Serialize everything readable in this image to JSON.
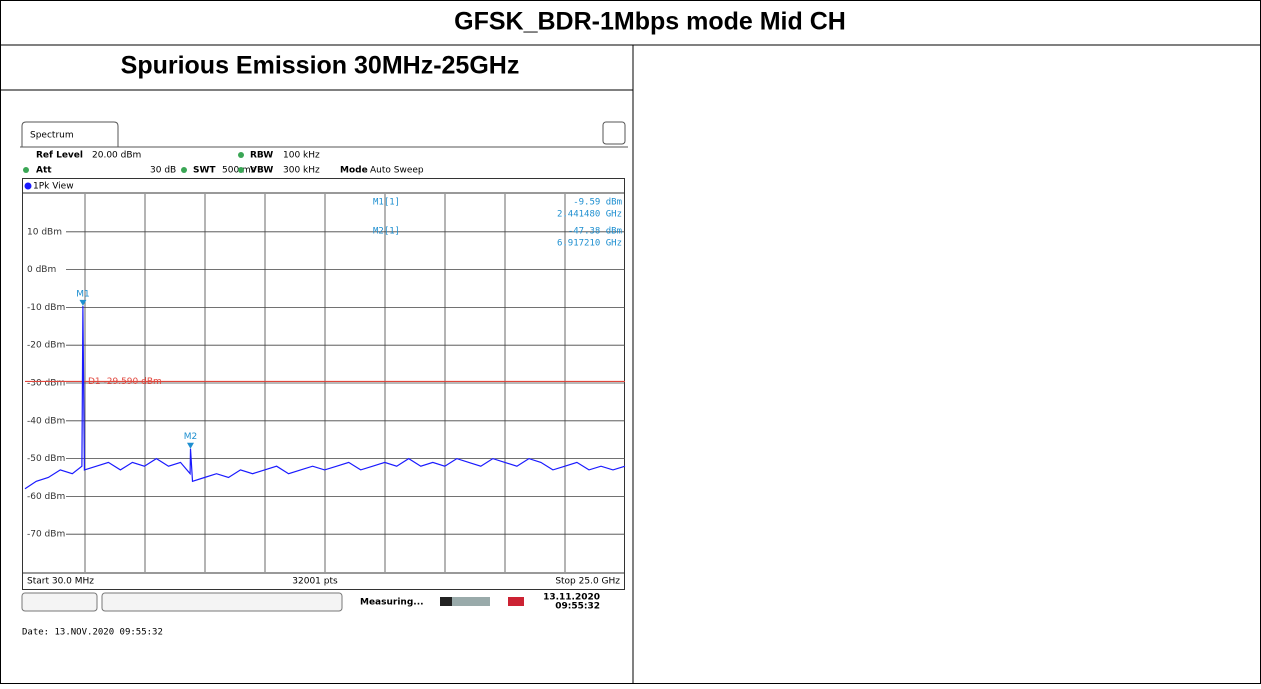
{
  "header": {
    "title": "GFSK_BDR-1Mbps mode Mid CH"
  },
  "section": {
    "title": "Spurious Emission 30MHz-25GHz"
  },
  "analyzer": {
    "tab": "Spectrum",
    "settings": {
      "ref_level_label": "Ref Level",
      "ref_level": "20.00 dBm",
      "rbw_label": "RBW",
      "rbw": "100 kHz",
      "att_label": "Att",
      "att": "30 dB",
      "swt_label": "SWT",
      "swt": "500 ms",
      "vbw_label": "VBW",
      "vbw": "300 kHz",
      "mode_label": "Mode",
      "mode": "Auto Sweep"
    },
    "view": "1Pk View",
    "chart_data": {
      "type": "line",
      "xlim": [
        0.03,
        25.0
      ],
      "x_divisions": 10,
      "ylim": [
        -80,
        20
      ],
      "yticks": [
        {
          "value": 10,
          "label": "10 dBm"
        },
        {
          "value": 0,
          "label": "0 dBm"
        },
        {
          "value": -10,
          "label": "-10 dBm"
        },
        {
          "value": -20,
          "label": "-20 dBm"
        },
        {
          "value": -30,
          "label": "-30 dBm"
        },
        {
          "value": -40,
          "label": "-40 dBm"
        },
        {
          "value": -50,
          "label": "-50 dBm"
        },
        {
          "value": -60,
          "label": "-60 dBm"
        },
        {
          "value": -70,
          "label": "-70 dBm"
        }
      ],
      "grid": true,
      "series": [
        {
          "color": "#1a1aff",
          "x": [
            0.03,
            0.5,
            1.0,
            1.5,
            2.0,
            2.4,
            2.44148,
            2.5,
            3.0,
            3.5,
            4.0,
            4.5,
            5.0,
            5.5,
            6.0,
            6.5,
            6.9,
            6.91721,
            7.0,
            7.5,
            8.0,
            8.5,
            9.0,
            9.5,
            10.0,
            10.5,
            11.0,
            11.5,
            12.0,
            12.5,
            13.0,
            13.5,
            14.0,
            14.5,
            15.0,
            15.5,
            16.0,
            16.5,
            17.0,
            17.5,
            18.0,
            18.5,
            19.0,
            19.5,
            20.0,
            20.5,
            21.0,
            21.5,
            22.0,
            22.5,
            23.0,
            23.5,
            24.0,
            24.5,
            25.0
          ],
          "values": [
            -58,
            -56,
            -55,
            -53,
            -54,
            -52,
            -9.59,
            -53,
            -52,
            -51,
            -53,
            -51,
            -52,
            -50,
            -52,
            -51,
            -54,
            -47.38,
            -56,
            -55,
            -54,
            -55,
            -53,
            -54,
            -53,
            -52,
            -54,
            -53,
            -52,
            -53,
            -52,
            -51,
            -53,
            -52,
            -51,
            -52,
            -50,
            -52,
            -51,
            -52,
            -50,
            -51,
            -52,
            -50,
            -51,
            -52,
            -50,
            -51,
            -53,
            -52,
            -51,
            -53,
            -52,
            -53,
            -52
          ]
        }
      ],
      "display_line": {
        "label": "D1 -29.590 dBm",
        "value": -29.59,
        "color": "#e0463c"
      },
      "markers": [
        {
          "name": "M1",
          "label": "M1[1]",
          "x": 2.44148,
          "x_label": "2.441480 GHz",
          "value": -9.59,
          "value_label": "-9.59 dBm"
        },
        {
          "name": "M2",
          "label": "M2[1]",
          "x": 6.91721,
          "x_label": "6.917210 GHz",
          "value": -47.38,
          "value_label": "-47.38 dBm"
        }
      ],
      "start": "Start 30.0 MHz",
      "points": "32001 pts",
      "stop": "Stop 25.0 GHz"
    },
    "status": {
      "state": "Measuring...",
      "date": "13.11.2020",
      "time": "09:55:32"
    }
  },
  "footer": {
    "date": "Date: 13.NOV.2020  09:55:32"
  }
}
